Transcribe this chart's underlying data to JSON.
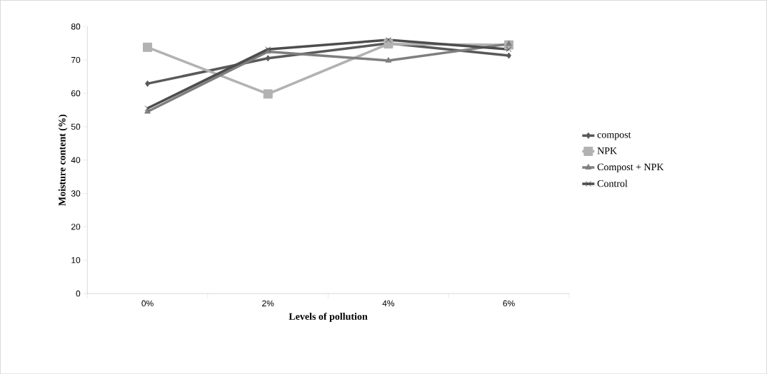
{
  "chart_data": {
    "type": "line",
    "xlabel": "Levels of pollution",
    "ylabel": "Moisture content (%)",
    "categories": [
      "0%",
      "2%",
      "4%",
      "6%"
    ],
    "series": [
      {
        "name": "compost",
        "color": "#595959",
        "marker": "diamond",
        "values": [
          62.9,
          70.5,
          75.0,
          71.3
        ]
      },
      {
        "name": "NPK",
        "color": "#b2b2b2",
        "marker": "square",
        "values": [
          73.8,
          59.8,
          74.8,
          74.5
        ]
      },
      {
        "name": "Compost + NPK",
        "color": "#7f7f7f",
        "marker": "triangle",
        "values": [
          54.5,
          72.5,
          69.8,
          74.8
        ]
      },
      {
        "name": "Control",
        "color": "#4d4d4d",
        "marker": "cross",
        "values": [
          55.5,
          73.2,
          76.0,
          73.2
        ]
      }
    ],
    "ylim": [
      0,
      80
    ],
    "yticks": [
      0,
      10,
      20,
      30,
      40,
      50,
      60,
      70,
      80
    ],
    "grid": false,
    "legend": "right",
    "line_style": "solid"
  }
}
